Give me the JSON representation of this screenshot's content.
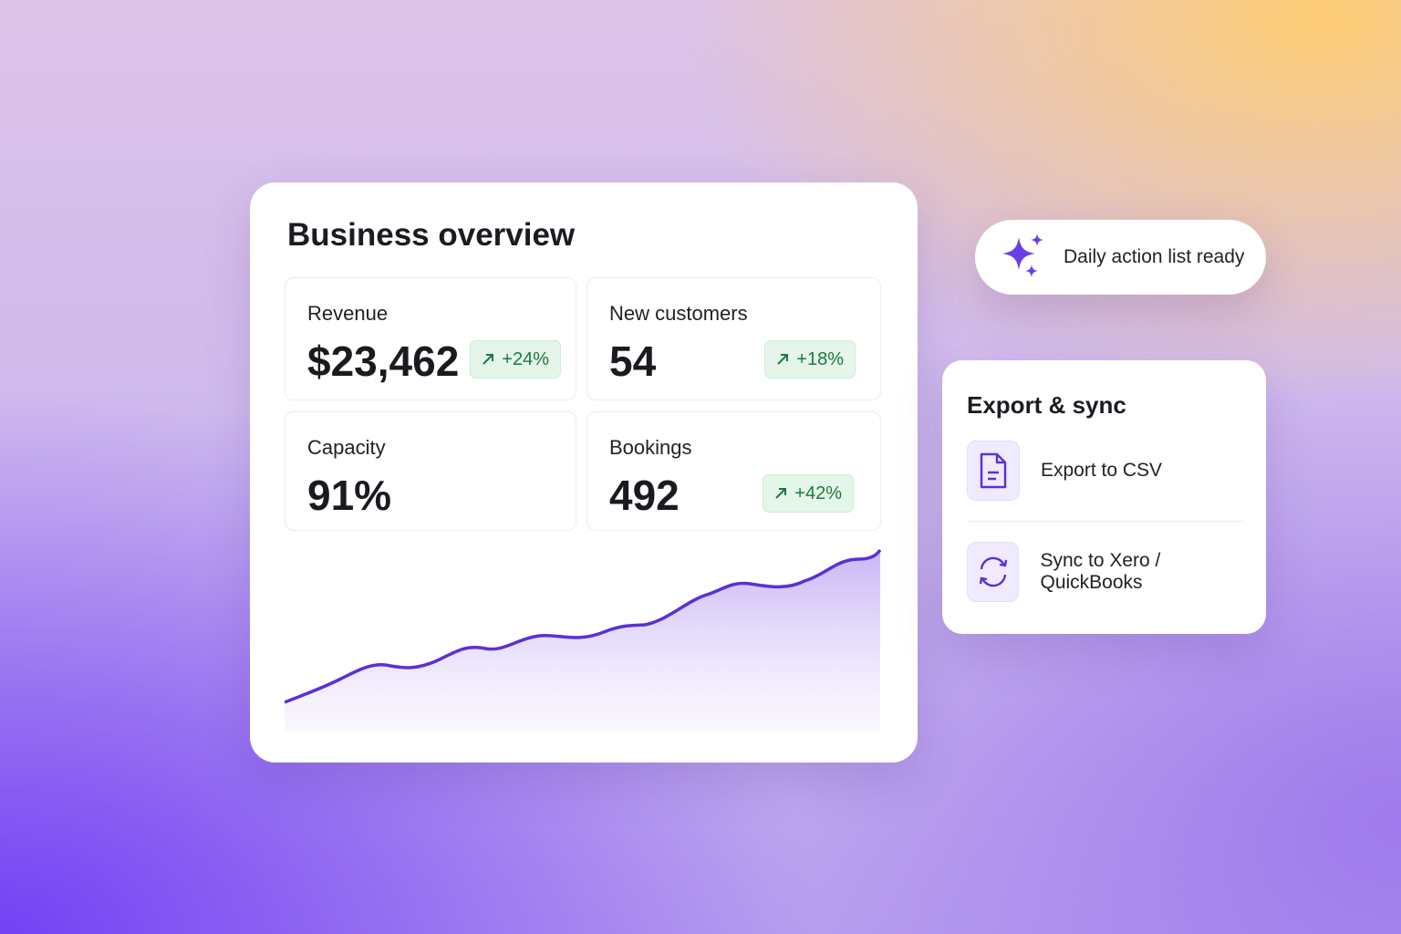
{
  "dashboard": {
    "title": "Business overview",
    "metrics": [
      {
        "label": "Revenue",
        "value": "$23,462",
        "change": "+24%"
      },
      {
        "label": "New customers",
        "value": "54",
        "change": "+18%"
      },
      {
        "label": "Capacity",
        "value": "91%"
      },
      {
        "label": "Bookings",
        "value": "492",
        "change": "+42%"
      }
    ]
  },
  "notification": {
    "text": "Daily action list ready"
  },
  "export_panel": {
    "title": "Export & sync",
    "actions": [
      {
        "label": "Export to CSV"
      },
      {
        "label": "Sync to Xero / QuickBooks"
      }
    ]
  }
}
